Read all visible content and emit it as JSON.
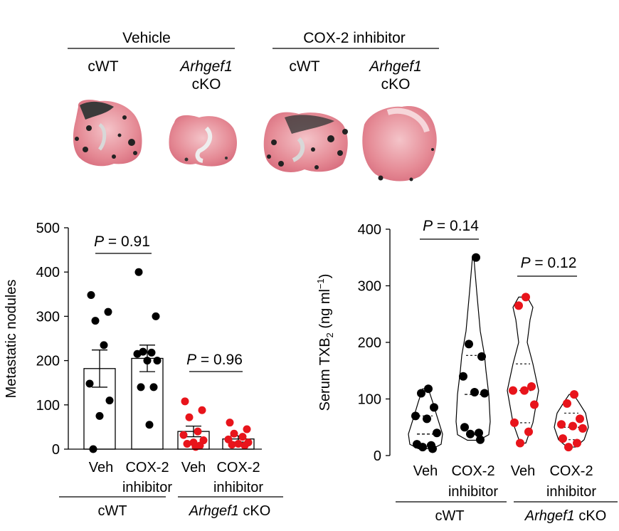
{
  "colors": {
    "wt": "#000000",
    "ko": "#e8141b",
    "lung_pink": "#e58a95",
    "lung_pink_light": "#f1b2b8",
    "nodule": "#141414"
  },
  "photo_panel": {
    "treatments": [
      {
        "label": "Vehicle"
      },
      {
        "label": "COX-2 inhibitor"
      }
    ],
    "genotypes": [
      {
        "line1": "cWT",
        "line2": ""
      },
      {
        "line1": "Arhgef1",
        "line2": "cKO"
      },
      {
        "line1": "cWT",
        "line2": ""
      },
      {
        "line1": "Arhgef1",
        "line2": "cKO"
      }
    ],
    "lung_icon": "metastatic-lung-photo"
  },
  "chart_data": [
    {
      "type": "bar",
      "ylabel": "Metastatic nodules",
      "ylim": [
        0,
        500
      ],
      "yticks": [
        0,
        100,
        200,
        300,
        400,
        500
      ],
      "categories": [
        {
          "label1": "Veh",
          "label2": ""
        },
        {
          "label1": "COX-2",
          "label2": "inhibitor"
        },
        {
          "label1": "Veh",
          "label2": ""
        },
        {
          "label1": "COX-2",
          "label2": "inhibitor"
        }
      ],
      "groups": [
        {
          "label": "cWT",
          "italic_part": "",
          "rest": ""
        },
        {
          "label": "",
          "italic_part": "Arhgef1",
          "rest": " cKO"
        }
      ],
      "series": [
        {
          "genotype": "cWT",
          "treatment": "Veh",
          "mean": 182,
          "sem": 42,
          "points": [
            348,
            310,
            290,
            235,
            148,
            110,
            75,
            0
          ]
        },
        {
          "genotype": "cWT",
          "treatment": "COX-2 inhibitor",
          "mean": 205,
          "sem": 30,
          "points": [
            400,
            300,
            220,
            218,
            215,
            200,
            200,
            140,
            140,
            55
          ]
        },
        {
          "genotype": "Arhgef1 cKO",
          "treatment": "Veh",
          "mean": 40,
          "sem": 12,
          "points": [
            108,
            88,
            72,
            40,
            32,
            20,
            15,
            12,
            8,
            5
          ]
        },
        {
          "genotype": "Arhgef1 cKO",
          "treatment": "COX-2 inhibitor",
          "mean": 23,
          "sem": 7,
          "points": [
            60,
            45,
            35,
            28,
            22,
            15,
            12,
            10,
            8
          ]
        }
      ],
      "comparisons": [
        {
          "label": "P = 0.91",
          "from": 0,
          "to": 1
        },
        {
          "label": "P = 0.96",
          "from": 2,
          "to": 3
        }
      ]
    },
    {
      "type": "violin",
      "ylabel": "Serum TXB2 (ng ml-1)",
      "ylim": [
        0,
        400
      ],
      "yticks": [
        0,
        100,
        200,
        300,
        400
      ],
      "categories": [
        {
          "label1": "Veh",
          "label2": ""
        },
        {
          "label1": "COX-2",
          "label2": "inhibitor"
        },
        {
          "label1": "Veh",
          "label2": ""
        },
        {
          "label1": "COX-2",
          "label2": "inhibitor"
        }
      ],
      "groups": [
        {
          "label": "cWT",
          "italic_part": "",
          "rest": ""
        },
        {
          "label": "",
          "italic_part": "Arhgef1",
          "rest": " cKO"
        }
      ],
      "series": [
        {
          "genotype": "cWT",
          "treatment": "Veh",
          "median": 38,
          "quartiles": [
            20,
            70
          ],
          "range": [
            12,
            118
          ],
          "points": [
            118,
            110,
            85,
            70,
            65,
            40,
            20,
            18,
            15,
            12
          ]
        },
        {
          "genotype": "cWT",
          "treatment": "COX-2 inhibitor",
          "median": 108,
          "quartiles": [
            37,
            177
          ],
          "range": [
            27,
            350
          ],
          "points": [
            350,
            197,
            175,
            140,
            112,
            110,
            50,
            40,
            38,
            28
          ]
        },
        {
          "genotype": "Arhgef1 cKO",
          "treatment": "Veh",
          "median": 115,
          "quartiles": [
            58,
            162
          ],
          "range": [
            22,
            280
          ],
          "points": [
            280,
            265,
            122,
            115,
            115,
            90,
            58,
            42,
            22
          ]
        },
        {
          "genotype": "Arhgef1 cKO",
          "treatment": "COX-2 inhibitor",
          "median": 50,
          "quartiles": [
            28,
            75
          ],
          "range": [
            15,
            108
          ],
          "points": [
            108,
            92,
            65,
            55,
            52,
            48,
            30,
            22,
            15
          ]
        }
      ],
      "comparisons": [
        {
          "label": "P = 0.14",
          "from": 0,
          "to": 1
        },
        {
          "label": "P = 0.12",
          "from": 2,
          "to": 3
        }
      ]
    }
  ]
}
